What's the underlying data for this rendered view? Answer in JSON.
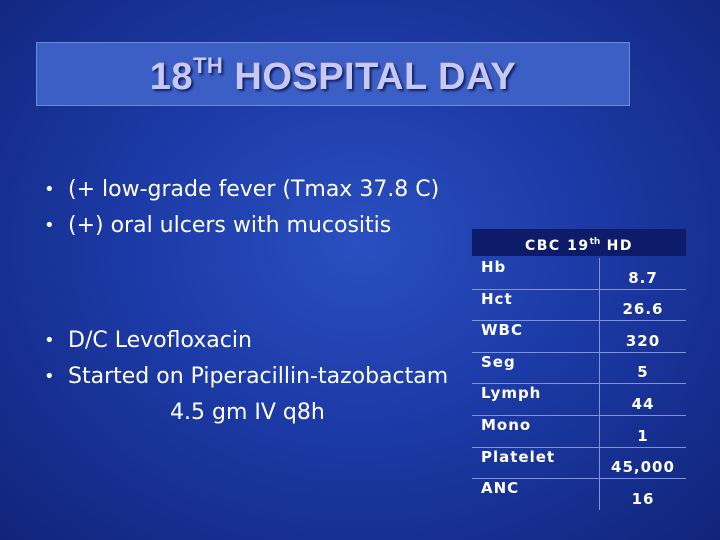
{
  "slide": {
    "title_main": "18",
    "title_sup": "TH",
    "title_rest": " HOSPITAL DAY",
    "bullets_top": [
      "(+ low-grade fever (Tmax 37.8 C)",
      "(+) oral ulcers with mucositis"
    ],
    "bullets_bottom": [
      "D/C Levofloxacin",
      "Started on Piperacillin-tazobactam"
    ],
    "bullet_continuation": "4.5 gm IV q8h",
    "bullet_glyph": "•"
  },
  "cbc_table": {
    "title_main": "CBC 19",
    "title_sup": "th",
    "title_rest": " HD",
    "rows": [
      {
        "label": "Hb",
        "value": "8.7"
      },
      {
        "label": "Hct",
        "value": "26.6"
      },
      {
        "label": "WBC",
        "value": "320"
      },
      {
        "label": "Seg",
        "value": "5"
      },
      {
        "label": "Lymph",
        "value": "44"
      },
      {
        "label": "Mono",
        "value": "1"
      },
      {
        "label": "Platelet",
        "value": "45,000"
      },
      {
        "label": "ANC",
        "value": "16"
      }
    ]
  },
  "colors": {
    "background": "#1c3aa6",
    "title_box": "#3b5fc4",
    "title_text": "#c9c9f0",
    "table_header": "#0e1b6b",
    "text": "#ffffff"
  }
}
